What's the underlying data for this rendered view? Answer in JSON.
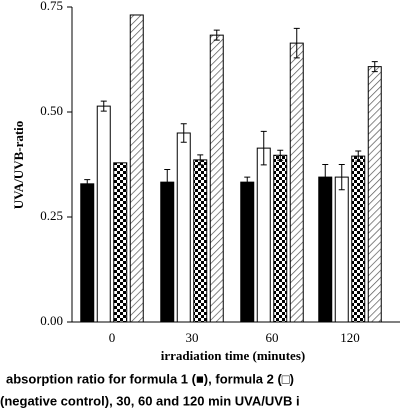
{
  "chart_data": {
    "type": "bar",
    "xlabel": "irradiation time (minutes)",
    "ylabel": "UVA/UVB-ratio",
    "categories": [
      "0",
      "30",
      "60",
      "120"
    ],
    "ylim": [
      0,
      0.75
    ],
    "yticks": [
      {
        "value": 0,
        "label": "0.00"
      },
      {
        "value": 0.25,
        "label": "0.25"
      },
      {
        "value": 0.5,
        "label": "0.50"
      },
      {
        "value": 0.75,
        "label": "0.75"
      }
    ],
    "series": [
      {
        "color": "#000000",
        "pattern": "solid",
        "values": [
          0.329,
          0.333,
          0.333,
          0.345
        ],
        "errors": [
          0.01,
          0.03,
          0.012,
          0.03
        ]
      },
      {
        "color": "#ffffff",
        "pattern": "solid",
        "values": [
          0.514,
          0.45,
          0.414,
          0.345
        ],
        "errors": [
          0.012,
          0.022,
          0.04,
          0.03
        ]
      },
      {
        "color": "#000000",
        "pattern": "checker",
        "values": [
          0.379,
          0.386,
          0.397,
          0.395
        ],
        "errors": [
          null,
          0.012,
          0.012,
          0.012
        ]
      },
      {
        "color": "#555555",
        "pattern": "hatch",
        "values": [
          0.731,
          0.683,
          0.664,
          0.608
        ],
        "errors": [
          null,
          0.012,
          0.035,
          0.012
        ]
      }
    ],
    "caption": [
      "absorption ratio for formula 1 (■), formula 2 (□)",
      "(negative control), 30, 60 and 120 min UVA/UVB i"
    ]
  }
}
